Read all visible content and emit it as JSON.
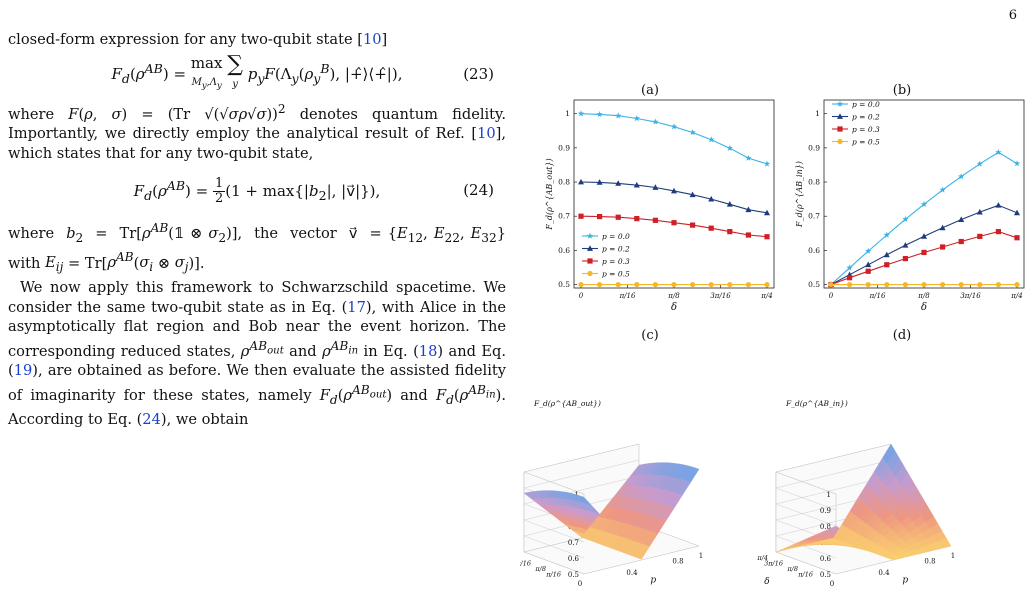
{
  "page_number": "6",
  "text": {
    "p1": "closed-form expression for any two-qubit state [10]",
    "eq23": "F_d(ρ^{AB}) = max_{M_y,Λ_y} Σ_y p_y F(Λ_y(ρ_y^B), |+̂⟩⟨+̂|),",
    "eq23_num": "(23)",
    "p2": "where F(ρ,σ) = (Tr √(√σ ρ √σ))² denotes quantum fidelity. Importantly, we directly employ the analytical result of Ref. [10], which states that for any two-qubit state,",
    "eq24": "F_d(ρ^{AB}) = ½(1 + max{|b₂|, |v⃗|}),",
    "eq24_num": "(24)",
    "p3": "where b₂ = Tr[ρ^{AB}(𝟙 ⊗ σ₂)], the vector v⃗ = {E₁₂, E₂₂, E₃₂} with E_ij = Tr[ρ^{AB}(σ_i ⊗ σ_j)].",
    "p4": "We now apply this framework to Schwarzschild spacetime. We consider the same two-qubit state as in Eq. (17), with Alice in the asymptotically flat region and Bob near the event horizon. The corresponding reduced states, ρ^{AB_out} and ρ^{AB_in} in Eq. (18) and Eq. (19), are obtained as before. We then evaluate the assisted fidelity of imaginarity for these states, namely F_d(ρ^{AB_out}) and F_d(ρ^{AB_in}). According to Eq. (24), we obtain",
    "footer_frag": "AB"
  },
  "figure": {
    "labels": [
      "(a)",
      "(b)",
      "(c)",
      "(d)"
    ],
    "colors": {
      "p0": "#3ab2e6",
      "p02": "#1f3c7a",
      "p03": "#cf2026",
      "p05": "#f4b62a"
    }
  },
  "chart_data": [
    {
      "type": "line",
      "panel": "(a)",
      "xlabel": "δ",
      "ylabel": "F_d(ρ^{AB_out})",
      "x_ticks": [
        "0",
        "π/16",
        "π/8",
        "3π/16",
        "π/4"
      ],
      "y_ticks": [
        "0.5",
        "0.6",
        "0.7",
        "0.8",
        "0.9",
        "1"
      ],
      "xlim": [
        0,
        0.7854
      ],
      "ylim": [
        0.49,
        1.04
      ],
      "legend": "bottom-left",
      "series": [
        {
          "name": "p=0.0",
          "color": "#3ab2e6",
          "marker": "star",
          "x": [
            0,
            0.0785,
            0.1571,
            0.2356,
            0.3142,
            0.3927,
            0.4712,
            0.5498,
            0.6283,
            0.7069,
            0.7854
          ],
          "y": [
            1.0,
            0.998,
            0.994,
            0.986,
            0.976,
            0.962,
            0.945,
            0.924,
            0.899,
            0.87,
            0.853
          ]
        },
        {
          "name": "p=0.2",
          "color": "#1f3c7a",
          "marker": "triangle",
          "x": [
            0,
            0.0785,
            0.1571,
            0.2356,
            0.3142,
            0.3927,
            0.4712,
            0.5498,
            0.6283,
            0.7069,
            0.7854
          ],
          "y": [
            0.8,
            0.799,
            0.796,
            0.791,
            0.784,
            0.774,
            0.763,
            0.75,
            0.735,
            0.719,
            0.71
          ]
        },
        {
          "name": "p=0.3",
          "color": "#cf2026",
          "marker": "square",
          "x": [
            0,
            0.0785,
            0.1571,
            0.2356,
            0.3142,
            0.3927,
            0.4712,
            0.5498,
            0.6283,
            0.7069,
            0.7854
          ],
          "y": [
            0.7,
            0.699,
            0.697,
            0.693,
            0.688,
            0.681,
            0.674,
            0.665,
            0.655,
            0.645,
            0.64
          ]
        },
        {
          "name": "p=0.5",
          "color": "#f4b62a",
          "marker": "circle",
          "x": [
            0,
            0.0785,
            0.1571,
            0.2356,
            0.3142,
            0.3927,
            0.4712,
            0.5498,
            0.6283,
            0.7069,
            0.7854
          ],
          "y": [
            0.5,
            0.5,
            0.5,
            0.5,
            0.5,
            0.5,
            0.5,
            0.5,
            0.5,
            0.5,
            0.5
          ]
        }
      ]
    },
    {
      "type": "line",
      "panel": "(b)",
      "xlabel": "δ",
      "ylabel": "F_d(ρ^{AB_in})",
      "x_ticks": [
        "0",
        "π/16",
        "π/8",
        "3π/16",
        "π/4"
      ],
      "y_ticks": [
        "0.5",
        "0.6",
        "0.7",
        "0.8",
        "0.9",
        "1"
      ],
      "xlim": [
        0,
        0.7854
      ],
      "ylim": [
        0.49,
        1.04
      ],
      "legend": "top-left",
      "series": [
        {
          "name": "p=0.0",
          "color": "#3ab2e6",
          "marker": "star",
          "x": [
            0,
            0.0785,
            0.1571,
            0.2356,
            0.3142,
            0.3927,
            0.4712,
            0.5498,
            0.6283,
            0.7069,
            0.7854
          ],
          "y": [
            0.5,
            0.549,
            0.598,
            0.645,
            0.691,
            0.735,
            0.777,
            0.816,
            0.853,
            0.887,
            0.854
          ]
        },
        {
          "name": "p=0.2",
          "color": "#1f3c7a",
          "marker": "triangle",
          "x": [
            0,
            0.0785,
            0.1571,
            0.2356,
            0.3142,
            0.3927,
            0.4712,
            0.5498,
            0.6283,
            0.7069,
            0.7854
          ],
          "y": [
            0.5,
            0.529,
            0.558,
            0.587,
            0.615,
            0.641,
            0.666,
            0.69,
            0.712,
            0.732,
            0.71
          ]
        },
        {
          "name": "p=0.3",
          "color": "#cf2026",
          "marker": "square",
          "x": [
            0,
            0.0785,
            0.1571,
            0.2356,
            0.3142,
            0.3927,
            0.4712,
            0.5498,
            0.6283,
            0.7069,
            0.7854
          ],
          "y": [
            0.5,
            0.52,
            0.539,
            0.558,
            0.576,
            0.594,
            0.61,
            0.626,
            0.641,
            0.655,
            0.637
          ]
        },
        {
          "name": "p=0.5",
          "color": "#f4b62a",
          "marker": "circle",
          "x": [
            0,
            0.0785,
            0.1571,
            0.2356,
            0.3142,
            0.3927,
            0.4712,
            0.5498,
            0.6283,
            0.7069,
            0.7854
          ],
          "y": [
            0.5,
            0.5,
            0.5,
            0.5,
            0.5,
            0.5,
            0.5,
            0.5,
            0.5,
            0.5,
            0.5
          ]
        }
      ]
    },
    {
      "type": "surface",
      "panel": "(c)",
      "zlabel": "F_d(ρ^{AB_out})",
      "z_ticks": [
        "0.5",
        "0.6",
        "0.7",
        "0.8",
        "0.9",
        "1"
      ],
      "p_ticks": [
        "0",
        "0.2",
        "0.4",
        "0.6",
        "0.8",
        "1"
      ],
      "p_label": "p",
      "delta_ticks": [
        "π/16",
        "π/8",
        "3π/16",
        "π/4"
      ],
      "delta_label": "δ"
    },
    {
      "type": "surface",
      "panel": "(d)",
      "zlabel": "F_d(ρ^{AB_in})",
      "z_ticks": [
        "0.5",
        "0.6",
        "0.7",
        "0.8",
        "0.9",
        "1"
      ],
      "p_ticks": [
        "0",
        "0.2",
        "0.4",
        "0.6",
        "0.8",
        "1"
      ],
      "p_label": "p",
      "delta_ticks": [
        "π/16",
        "π/8",
        "3π/16",
        "π/4"
      ],
      "delta_label": "δ"
    }
  ]
}
